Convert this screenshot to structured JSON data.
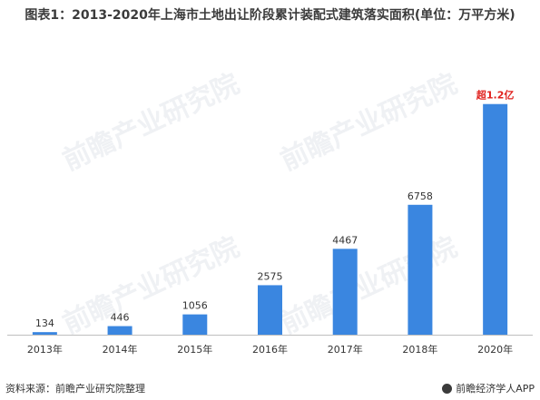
{
  "title": "图表1：2013-2020年上海市土地出让阶段累计装配式建筑落实面积(单位：万平方米)",
  "source": "资料来源：前瞻产业研究院整理",
  "brand": "前瞻经济学人APP",
  "watermark": "前瞻产业研究院",
  "colors": {
    "bar": "#3a86e0",
    "highlight_label": "#e0201c"
  },
  "chart_data": {
    "type": "bar",
    "title": "图表1：2013-2020年上海市土地出让阶段累计装配式建筑落实面积(单位：万平方米)",
    "categories": [
      "2013年",
      "2014年",
      "2015年",
      "2016年",
      "2017年",
      "2018年",
      "2020年"
    ],
    "values": [
      134,
      446,
      1056,
      2575,
      4467,
      6758,
      12000
    ],
    "data_labels": [
      "134",
      "446",
      "1056",
      "2575",
      "4467",
      "6758",
      "超1.2亿"
    ],
    "ylim": [
      0,
      12600
    ],
    "grid": false,
    "legend": "none"
  }
}
